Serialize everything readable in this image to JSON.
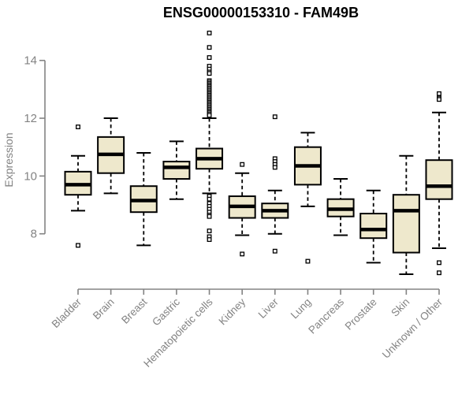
{
  "title": "ENSG00000153310 - FAM49B",
  "chart_data": {
    "type": "boxplot",
    "title": "ENSG00000153310 - FAM49B",
    "xlabel": "",
    "ylabel": "Expression",
    "ylim": [
      6.4,
      15.2
    ],
    "yticks": [
      8,
      10,
      12,
      14
    ],
    "grid": false,
    "legend": "none",
    "colors": {
      "box_fill": "#EEE8CC",
      "box_stroke": "#000000",
      "median": "#000000",
      "whisker": "#000000",
      "axis": "#838383",
      "tick_text": "#838383",
      "title_text": "#000000",
      "background": "#ffffff"
    },
    "categories": [
      "Bladder",
      "Brain",
      "Breast",
      "Gastric",
      "Hematopoietic cells",
      "Kidney",
      "Liver",
      "Lung",
      "Pancreas",
      "Prostate",
      "Skin",
      "Unknown / Other"
    ],
    "series": [
      {
        "category": "Bladder",
        "whisker_low": 8.8,
        "q1": 9.35,
        "median": 9.7,
        "q3": 10.15,
        "whisker_high": 10.7,
        "outliers": [
          11.7,
          7.6
        ]
      },
      {
        "category": "Brain",
        "whisker_low": 9.4,
        "q1": 10.1,
        "median": 10.75,
        "q3": 11.35,
        "whisker_high": 12.0,
        "outliers": []
      },
      {
        "category": "Breast",
        "whisker_low": 7.6,
        "q1": 8.75,
        "median": 9.15,
        "q3": 9.65,
        "whisker_high": 10.8,
        "outliers": []
      },
      {
        "category": "Gastric",
        "whisker_low": 9.2,
        "q1": 9.9,
        "median": 10.3,
        "q3": 10.5,
        "whisker_high": 11.2,
        "outliers": []
      },
      {
        "category": "Hematopoietic cells",
        "whisker_low": 9.4,
        "q1": 10.25,
        "median": 10.6,
        "q3": 10.95,
        "whisker_high": 12.0,
        "outliers": [
          14.95,
          14.45,
          14.1,
          13.8,
          13.7,
          13.6,
          13.55,
          13.3,
          13.25,
          13.2,
          13.15,
          13.1,
          13.05,
          13.0,
          12.95,
          12.9,
          12.85,
          12.8,
          12.75,
          12.7,
          12.65,
          12.6,
          12.55,
          12.5,
          12.45,
          12.4,
          12.35,
          12.3,
          12.25,
          12.2,
          12.15,
          12.1,
          9.3,
          9.2,
          9.05,
          8.95,
          8.85,
          8.75,
          8.65,
          8.6,
          8.1,
          7.9,
          7.8
        ]
      },
      {
        "category": "Kidney",
        "whisker_low": 7.95,
        "q1": 8.55,
        "median": 8.95,
        "q3": 9.3,
        "whisker_high": 10.1,
        "outliers": [
          10.4,
          7.3
        ]
      },
      {
        "category": "Liver",
        "whisker_low": 8.0,
        "q1": 8.55,
        "median": 8.8,
        "q3": 9.05,
        "whisker_high": 9.5,
        "outliers": [
          12.05,
          10.6,
          10.5,
          10.4,
          10.3,
          7.4
        ]
      },
      {
        "category": "Lung",
        "whisker_low": 8.95,
        "q1": 9.7,
        "median": 10.35,
        "q3": 11.0,
        "whisker_high": 11.5,
        "outliers": [
          7.05
        ]
      },
      {
        "category": "Pancreas",
        "whisker_low": 7.95,
        "q1": 8.6,
        "median": 8.85,
        "q3": 9.2,
        "whisker_high": 9.9,
        "outliers": []
      },
      {
        "category": "Prostate",
        "whisker_low": 7.0,
        "q1": 7.85,
        "median": 8.15,
        "q3": 8.7,
        "whisker_high": 9.5,
        "outliers": []
      },
      {
        "category": "Skin",
        "whisker_low": 6.6,
        "q1": 7.35,
        "median": 8.8,
        "q3": 9.35,
        "whisker_high": 10.7,
        "outliers": []
      },
      {
        "category": "Unknown / Other",
        "whisker_low": 7.5,
        "q1": 9.2,
        "median": 9.65,
        "q3": 10.55,
        "whisker_high": 12.2,
        "outliers": [
          12.85,
          12.7,
          12.65,
          7.0,
          6.65
        ]
      }
    ]
  }
}
